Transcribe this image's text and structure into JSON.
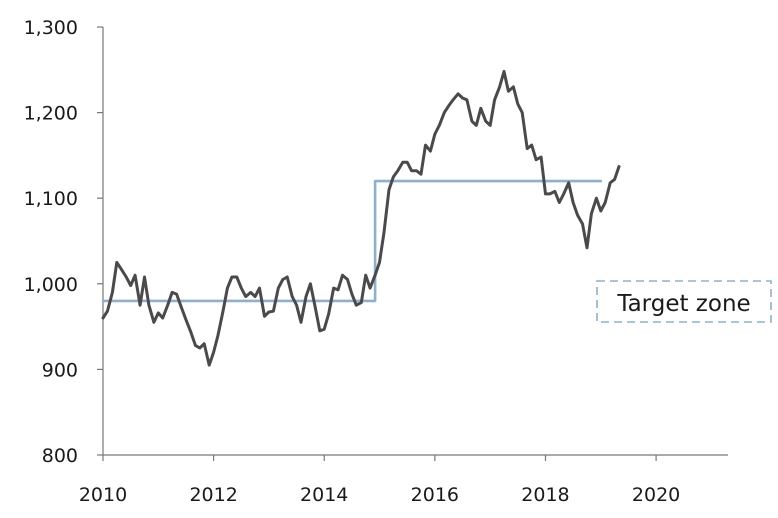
{
  "chart_data": {
    "type": "line",
    "title": "",
    "xlabel": "",
    "ylabel": "",
    "xlim": [
      2010,
      2021.3
    ],
    "ylim": [
      800,
      1300
    ],
    "x_ticks": [
      "2010",
      "2012",
      "2014",
      "2016",
      "2018",
      "2020"
    ],
    "y_ticks": [
      "800",
      "900",
      "1,000",
      "1,100",
      "1,200",
      "1,300"
    ],
    "grid": false,
    "colors": {
      "series": "#4a4a4d",
      "target": "#8fb0c8",
      "axis": "#777777"
    },
    "annotation": {
      "text": "Target zone"
    },
    "series": [
      {
        "color": "#4a4a4d",
        "points": [
          [
            2010.0,
            960
          ],
          [
            2010.08,
            968
          ],
          [
            2010.17,
            990
          ],
          [
            2010.25,
            1025
          ],
          [
            2010.33,
            1017
          ],
          [
            2010.42,
            1008
          ],
          [
            2010.5,
            998
          ],
          [
            2010.58,
            1010
          ],
          [
            2010.67,
            975
          ],
          [
            2010.75,
            1008
          ],
          [
            2010.83,
            975
          ],
          [
            2010.92,
            955
          ],
          [
            2011.0,
            966
          ],
          [
            2011.08,
            960
          ],
          [
            2011.17,
            975
          ],
          [
            2011.25,
            990
          ],
          [
            2011.33,
            988
          ],
          [
            2011.42,
            972
          ],
          [
            2011.5,
            958
          ],
          [
            2011.58,
            945
          ],
          [
            2011.67,
            928
          ],
          [
            2011.75,
            925
          ],
          [
            2011.83,
            930
          ],
          [
            2011.92,
            905
          ],
          [
            2012.0,
            920
          ],
          [
            2012.08,
            940
          ],
          [
            2012.17,
            968
          ],
          [
            2012.25,
            995
          ],
          [
            2012.33,
            1008
          ],
          [
            2012.42,
            1008
          ],
          [
            2012.5,
            995
          ],
          [
            2012.58,
            985
          ],
          [
            2012.67,
            990
          ],
          [
            2012.75,
            985
          ],
          [
            2012.83,
            995
          ],
          [
            2012.92,
            962
          ],
          [
            2013.0,
            967
          ],
          [
            2013.08,
            968
          ],
          [
            2013.17,
            995
          ],
          [
            2013.25,
            1005
          ],
          [
            2013.33,
            1008
          ],
          [
            2013.42,
            985
          ],
          [
            2013.5,
            975
          ],
          [
            2013.58,
            955
          ],
          [
            2013.67,
            985
          ],
          [
            2013.75,
            1000
          ],
          [
            2013.83,
            975
          ],
          [
            2013.92,
            945
          ],
          [
            2014.0,
            947
          ],
          [
            2014.08,
            965
          ],
          [
            2014.17,
            995
          ],
          [
            2014.25,
            993
          ],
          [
            2014.33,
            1010
          ],
          [
            2014.42,
            1005
          ],
          [
            2014.5,
            988
          ],
          [
            2014.58,
            975
          ],
          [
            2014.67,
            978
          ],
          [
            2014.75,
            1010
          ],
          [
            2014.83,
            995
          ],
          [
            2014.92,
            1010
          ],
          [
            2015.0,
            1025
          ],
          [
            2015.08,
            1060
          ],
          [
            2015.17,
            1110
          ],
          [
            2015.25,
            1125
          ],
          [
            2015.33,
            1132
          ],
          [
            2015.42,
            1142
          ],
          [
            2015.5,
            1142
          ],
          [
            2015.58,
            1132
          ],
          [
            2015.67,
            1132
          ],
          [
            2015.75,
            1128
          ],
          [
            2015.83,
            1162
          ],
          [
            2015.92,
            1155
          ],
          [
            2016.0,
            1175
          ],
          [
            2016.08,
            1185
          ],
          [
            2016.17,
            1200
          ],
          [
            2016.25,
            1208
          ],
          [
            2016.33,
            1215
          ],
          [
            2016.42,
            1222
          ],
          [
            2016.5,
            1217
          ],
          [
            2016.58,
            1215
          ],
          [
            2016.67,
            1190
          ],
          [
            2016.75,
            1185
          ],
          [
            2016.83,
            1205
          ],
          [
            2016.92,
            1190
          ],
          [
            2017.0,
            1185
          ],
          [
            2017.08,
            1215
          ],
          [
            2017.17,
            1230
          ],
          [
            2017.25,
            1248
          ],
          [
            2017.33,
            1225
          ],
          [
            2017.42,
            1230
          ],
          [
            2017.5,
            1210
          ],
          [
            2017.58,
            1200
          ],
          [
            2017.67,
            1158
          ],
          [
            2017.75,
            1162
          ],
          [
            2017.83,
            1145
          ],
          [
            2017.92,
            1148
          ],
          [
            2018.0,
            1105
          ],
          [
            2018.08,
            1105
          ],
          [
            2018.17,
            1108
          ],
          [
            2018.25,
            1095
          ],
          [
            2018.33,
            1105
          ],
          [
            2018.42,
            1118
          ],
          [
            2018.5,
            1095
          ],
          [
            2018.58,
            1080
          ],
          [
            2018.67,
            1070
          ],
          [
            2018.75,
            1042
          ],
          [
            2018.83,
            1082
          ],
          [
            2018.92,
            1100
          ],
          [
            2019.0,
            1085
          ],
          [
            2019.08,
            1095
          ],
          [
            2019.17,
            1118
          ],
          [
            2019.25,
            1122
          ],
          [
            2019.33,
            1137
          ]
        ]
      },
      {
        "color": "#8fb0c8",
        "points": [
          [
            2010.0,
            980
          ],
          [
            2014.92,
            980
          ],
          [
            2014.92,
            1120
          ],
          [
            2019.0,
            1120
          ]
        ]
      }
    ]
  }
}
